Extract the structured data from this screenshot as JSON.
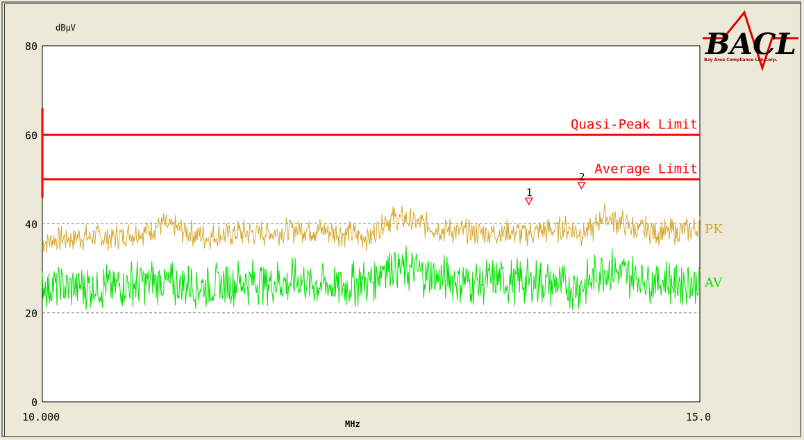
{
  "logo": {
    "text": "BACL",
    "tagline": "Bay Area Compliance Lab Corp."
  },
  "colors": {
    "limit": "#ff0000",
    "pk": "#d4a830",
    "av": "#00e000",
    "grid": "#808080",
    "marker": "#ff0000"
  },
  "chart_data": {
    "type": "line",
    "ylabel": "dBμV",
    "xlabel": "MHz",
    "xlim": [
      10.0,
      15.0
    ],
    "ylim": [
      0,
      80
    ],
    "x_tick_labels": [
      "10.000",
      "15.0"
    ],
    "y_tick_labels": [
      "0",
      "20",
      "40",
      "60",
      "80"
    ],
    "grid": "dashed lines at 20 and 40 dBμV",
    "limits": [
      {
        "name": "Quasi-Peak Limit",
        "value": 60
      },
      {
        "name": "Average Limit",
        "value": 50
      }
    ],
    "series": [
      {
        "name": "PK",
        "x": [
          10.0,
          10.25,
          10.5,
          10.75,
          10.9,
          11.0,
          11.25,
          11.5,
          11.75,
          12.0,
          12.25,
          12.5,
          12.6,
          12.75,
          13.0,
          13.25,
          13.5,
          13.75,
          14.0,
          14.1,
          14.2,
          14.25,
          14.5,
          14.75,
          15.0
        ],
        "values": [
          36,
          37,
          37,
          38,
          40,
          39,
          37,
          38,
          38,
          39,
          38,
          37,
          41,
          41,
          39,
          38,
          38,
          38,
          39,
          38,
          39,
          42,
          39,
          38,
          39
        ]
      },
      {
        "name": "AV",
        "x": [
          10.0,
          10.25,
          10.5,
          10.75,
          10.9,
          11.0,
          11.25,
          11.5,
          11.75,
          12.0,
          12.25,
          12.5,
          12.6,
          12.75,
          13.0,
          13.25,
          13.5,
          13.75,
          14.0,
          14.1,
          14.2,
          14.25,
          14.5,
          14.75,
          15.0
        ],
        "values": [
          26,
          26,
          26,
          27,
          27,
          26,
          26,
          27,
          27,
          27,
          26,
          27,
          31,
          30,
          28,
          27,
          27,
          27,
          26,
          26,
          28,
          30,
          28,
          27,
          27
        ]
      }
    ],
    "markers": [
      {
        "label": "1",
        "x": 13.7,
        "y": 45
      },
      {
        "label": "2",
        "x": 14.1,
        "y": 48.5
      }
    ]
  }
}
